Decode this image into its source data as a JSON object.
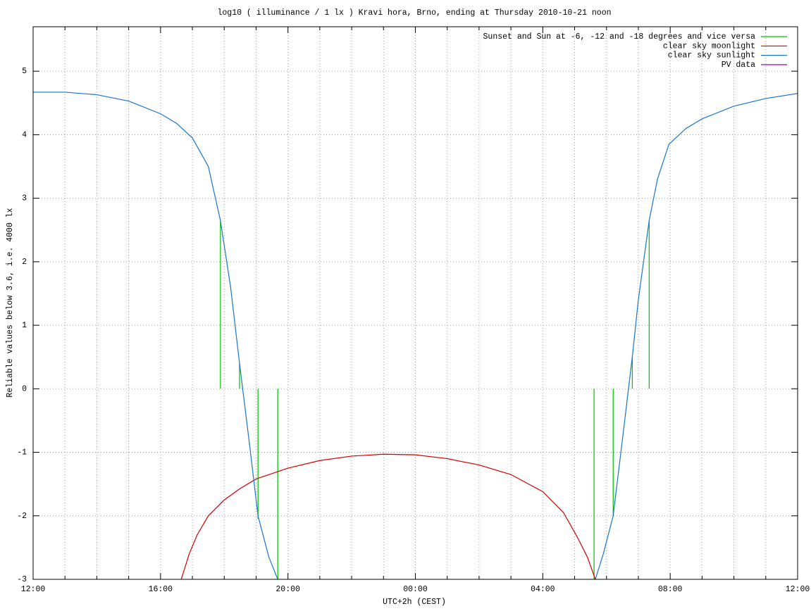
{
  "chart_data": {
    "type": "line",
    "title": "log10 ( illuminance / 1 lx ) Kravi hora, Brno, ending at Thursday 2010-10-21 noon",
    "x_label": "UTC+2h (CEST)",
    "y_label": "Reliable values below 3.6, i.e. 4000 lx",
    "xlim": [
      0,
      24
    ],
    "xticks": [
      {
        "value": 0,
        "label": "12:00"
      },
      {
        "value": 4,
        "label": "16:00"
      },
      {
        "value": 8,
        "label": "20:00"
      },
      {
        "value": 12,
        "label": "00:00"
      },
      {
        "value": 16,
        "label": "04:00"
      },
      {
        "value": 20,
        "label": "08:00"
      },
      {
        "value": 24,
        "label": "12:00"
      }
    ],
    "x_minor_ticks": [
      1,
      2,
      3,
      5,
      6,
      7,
      9,
      10,
      11,
      13,
      14,
      15,
      17,
      18,
      19,
      21,
      22,
      23
    ],
    "ylim": [
      -3,
      5.7
    ],
    "yticks": [
      -3,
      -2,
      -1,
      0,
      1,
      2,
      3,
      4,
      5
    ],
    "grid": true,
    "legend": "top-right",
    "series": [
      {
        "name": "Sunset and Sun at -6, -12 and -18 degrees and vice versa",
        "color": "#00c000",
        "style": "impulses",
        "x": [
          5.88,
          6.48,
          7.06,
          7.68,
          17.61,
          18.21,
          18.81,
          19.34
        ],
        "values": [
          2.65,
          0.4,
          -2.05,
          -3.0,
          -3.0,
          -2.0,
          0.5,
          2.65
        ]
      },
      {
        "name": "clear sky moonlight",
        "color": "#d00000",
        "style": "line",
        "x": [
          4.65,
          4.9,
          5.15,
          5.5,
          6.0,
          6.5,
          7.0,
          8.0,
          9.0,
          10.0,
          11.0,
          12.0,
          13.0,
          14.0,
          15.0,
          16.0,
          16.65,
          17.1,
          17.4,
          17.65
        ],
        "values": [
          -3.0,
          -2.6,
          -2.3,
          -2.0,
          -1.75,
          -1.57,
          -1.42,
          -1.25,
          -1.13,
          -1.06,
          -1.03,
          -1.04,
          -1.1,
          -1.2,
          -1.35,
          -1.62,
          -1.95,
          -2.35,
          -2.65,
          -3.0
        ]
      },
      {
        "name": "clear sky sunlight",
        "color": "#1a74cc",
        "style": "line",
        "x": [
          0,
          1,
          2,
          3,
          4,
          4.5,
          5,
          5.5,
          5.88,
          6.2,
          6.48,
          6.8,
          7.06,
          7.4,
          7.68,
          12,
          17.65,
          17.9,
          18.21,
          18.5,
          18.81,
          19.0,
          19.34,
          19.6,
          19.96,
          20.5,
          21,
          22,
          23,
          24
        ],
        "values": [
          4.67,
          4.67,
          4.63,
          4.53,
          4.33,
          4.18,
          3.95,
          3.5,
          2.65,
          1.6,
          0.4,
          -0.9,
          -2.0,
          -2.65,
          -3.0,
          null,
          -3.0,
          -2.6,
          -2.0,
          -0.8,
          0.5,
          1.4,
          2.65,
          3.3,
          3.85,
          4.1,
          4.25,
          4.45,
          4.57,
          4.65
        ]
      },
      {
        "name": "PV data",
        "color": "#a000c0",
        "style": "line",
        "x": [],
        "values": []
      }
    ]
  }
}
